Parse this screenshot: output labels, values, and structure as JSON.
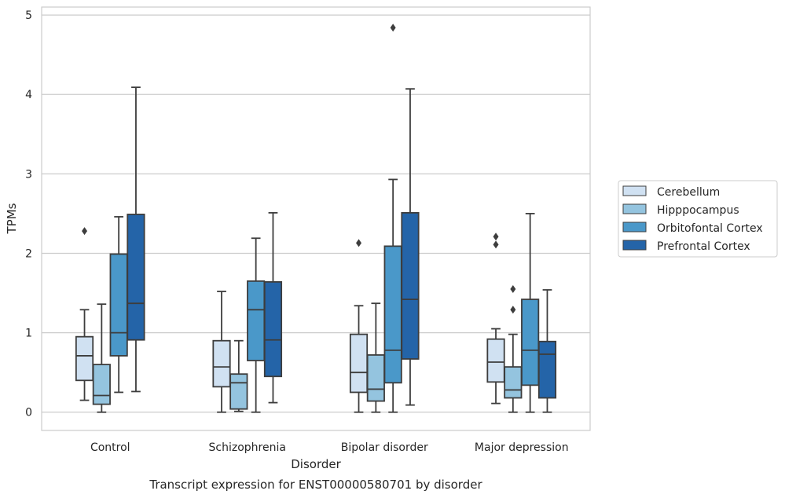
{
  "chart_data": {
    "type": "boxplot",
    "caption": "Transcript expression for ENST00000580701 by disorder",
    "xlabel": "Disorder",
    "ylabel": "TPMs",
    "ylim": [
      -0.23,
      5.1
    ],
    "yticks": [
      "0",
      "1",
      "2",
      "3",
      "4",
      "5"
    ],
    "grid": true,
    "legend_position": "right",
    "categories": [
      "Control",
      "Schizophrenia",
      "Bipolar disorder",
      "Major depression"
    ],
    "series": [
      {
        "name": "Cerebellum",
        "color": "#d0e1f2",
        "boxes": [
          {
            "min": 0.15,
            "q1": 0.4,
            "median": 0.71,
            "q3": 0.95,
            "max": 1.29,
            "outliers": [
              2.28
            ]
          },
          {
            "min": 0.0,
            "q1": 0.32,
            "median": 0.57,
            "q3": 0.9,
            "max": 1.52,
            "outliers": []
          },
          {
            "min": 0.0,
            "q1": 0.25,
            "median": 0.5,
            "q3": 0.98,
            "max": 1.34,
            "outliers": [
              2.13
            ]
          },
          {
            "min": 0.11,
            "q1": 0.38,
            "median": 0.63,
            "q3": 0.92,
            "max": 1.05,
            "outliers": [
              2.21,
              2.11
            ]
          }
        ]
      },
      {
        "name": "Hipppocampus",
        "color": "#94c4df",
        "boxes": [
          {
            "min": 0.0,
            "q1": 0.1,
            "median": 0.21,
            "q3": 0.6,
            "max": 1.36,
            "outliers": []
          },
          {
            "min": 0.01,
            "q1": 0.04,
            "median": 0.37,
            "q3": 0.48,
            "max": 0.9,
            "outliers": []
          },
          {
            "min": 0.0,
            "q1": 0.14,
            "median": 0.29,
            "q3": 0.72,
            "max": 1.37,
            "outliers": []
          },
          {
            "min": 0.0,
            "q1": 0.18,
            "median": 0.28,
            "q3": 0.57,
            "max": 0.98,
            "outliers": [
              1.55,
              1.29
            ]
          }
        ]
      },
      {
        "name": "Orbitofontal Cortex",
        "color": "#4a98c9",
        "boxes": [
          {
            "min": 0.25,
            "q1": 0.71,
            "median": 1.0,
            "q3": 1.99,
            "max": 2.46,
            "outliers": []
          },
          {
            "min": 0.0,
            "q1": 0.65,
            "median": 1.29,
            "q3": 1.65,
            "max": 2.19,
            "outliers": []
          },
          {
            "min": 0.0,
            "q1": 0.37,
            "median": 0.78,
            "q3": 2.09,
            "max": 2.93,
            "outliers": [
              4.84
            ]
          },
          {
            "min": 0.0,
            "q1": 0.34,
            "median": 0.78,
            "q3": 1.42,
            "max": 2.5,
            "outliers": []
          }
        ]
      },
      {
        "name": "Prefrontal Cortex",
        "color": "#2464a8",
        "boxes": [
          {
            "min": 0.26,
            "q1": 0.91,
            "median": 1.37,
            "q3": 2.49,
            "max": 4.09,
            "outliers": []
          },
          {
            "min": 0.12,
            "q1": 0.45,
            "median": 0.91,
            "q3": 1.64,
            "max": 2.51,
            "outliers": []
          },
          {
            "min": 0.09,
            "q1": 0.67,
            "median": 1.42,
            "q3": 2.51,
            "max": 4.07,
            "outliers": []
          },
          {
            "min": 0.0,
            "q1": 0.18,
            "median": 0.73,
            "q3": 0.89,
            "max": 1.54,
            "outliers": []
          }
        ]
      }
    ]
  }
}
